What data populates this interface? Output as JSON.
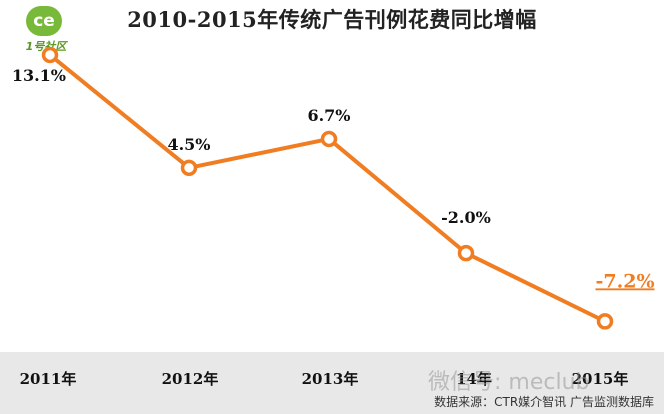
{
  "logo": {
    "mark": "ce",
    "text": "1号社区"
  },
  "chart_data": {
    "type": "line",
    "title": "2010-2015年传统广告刊例花费同比增幅",
    "categories": [
      "2011年",
      "2012年",
      "2013年",
      "14年",
      "2015年"
    ],
    "series": [
      {
        "values": [
          13.1,
          4.5,
          6.7,
          -2.0,
          -7.2
        ],
        "labels": [
          "13.1%",
          "4.5%",
          "6.7%",
          "-2.0%",
          "-7.2%"
        ]
      }
    ],
    "ylim": [
      -9,
      15
    ],
    "grid": false,
    "colors": {
      "line": "#f07d22",
      "highlight_label": "#f07d22",
      "label": "#111111"
    }
  },
  "watermark": "微信号: meclub",
  "source": "数据来源：CTR媒介智讯 广告监测数据库"
}
